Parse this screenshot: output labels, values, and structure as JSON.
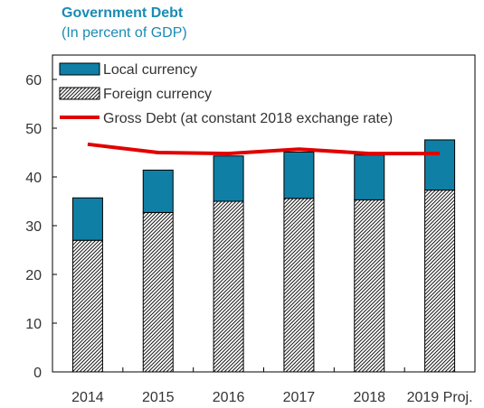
{
  "chart_data": {
    "type": "bar",
    "title": "Government Debt",
    "subtitle": "(In percent of GDP)",
    "categories": [
      "2014",
      "2015",
      "2016",
      "2017",
      "2018",
      "2019 Proj."
    ],
    "ylim": [
      0,
      65
    ],
    "yticks": [
      0,
      10,
      20,
      30,
      40,
      50,
      60
    ],
    "stacked": true,
    "series": [
      {
        "name": "Local currency",
        "kind": "bar",
        "color": "#0f7fa6",
        "values": [
          8.7,
          8.7,
          9.3,
          9.5,
          9.2,
          10.3
        ]
      },
      {
        "name": "Foreign currency",
        "kind": "bar-hatched",
        "color": "#ffffff",
        "values": [
          27.0,
          32.7,
          35.0,
          35.6,
          35.3,
          37.3
        ]
      },
      {
        "name": "Gross Debt (at constant 2018 exchange rate)",
        "kind": "line",
        "color": "#e00000",
        "values": [
          46.7,
          45.0,
          44.8,
          45.7,
          44.8,
          44.8
        ]
      }
    ],
    "legend_position": "top-left",
    "grid": false
  }
}
